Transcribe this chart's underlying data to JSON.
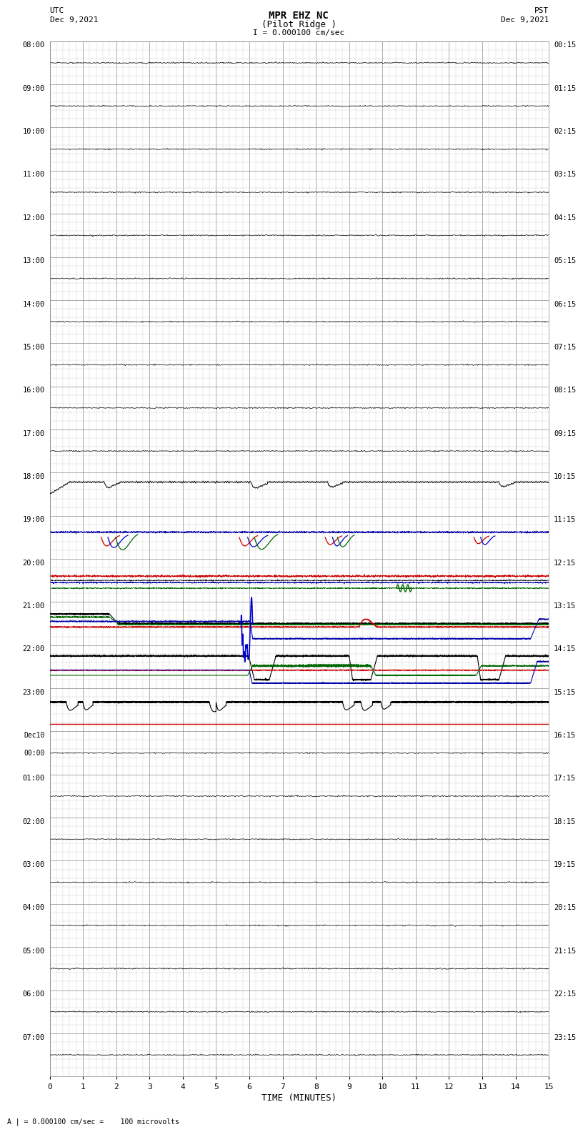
{
  "title_line1": "MPR EHZ NC",
  "title_line2": "(Pilot Ridge )",
  "title_line3": "I = 0.000100 cm/sec",
  "left_header_line1": "UTC",
  "left_header_line2": "Dec 9,2021",
  "right_header_line1": "PST",
  "right_header_line2": "Dec 9,2021",
  "xlabel": "TIME (MINUTES)",
  "footer": "A | = 0.000100 cm/sec =    100 microvolts",
  "xlim": [
    0,
    15
  ],
  "xticks": [
    0,
    1,
    2,
    3,
    4,
    5,
    6,
    7,
    8,
    9,
    10,
    11,
    12,
    13,
    14,
    15
  ],
  "bg_color": "#ffffff",
  "grid_major_color": "#888888",
  "grid_minor_color": "#cccccc",
  "num_traces": 24,
  "utc_times_left": [
    "08:00",
    "09:00",
    "10:00",
    "11:00",
    "12:00",
    "13:00",
    "14:00",
    "15:00",
    "16:00",
    "17:00",
    "18:00",
    "19:00",
    "20:00",
    "21:00",
    "22:00",
    "23:00",
    "Dec10\n00:00",
    "01:00",
    "02:00",
    "03:00",
    "04:00",
    "05:00",
    "06:00",
    "07:00"
  ],
  "pst_times_right": [
    "00:15",
    "01:15",
    "02:15",
    "03:15",
    "04:15",
    "05:15",
    "06:15",
    "07:15",
    "08:15",
    "09:15",
    "10:15",
    "11:15",
    "12:15",
    "13:15",
    "14:15",
    "15:15",
    "16:15",
    "17:15",
    "18:15",
    "19:15",
    "20:15",
    "21:15",
    "22:15",
    "23:15"
  ]
}
